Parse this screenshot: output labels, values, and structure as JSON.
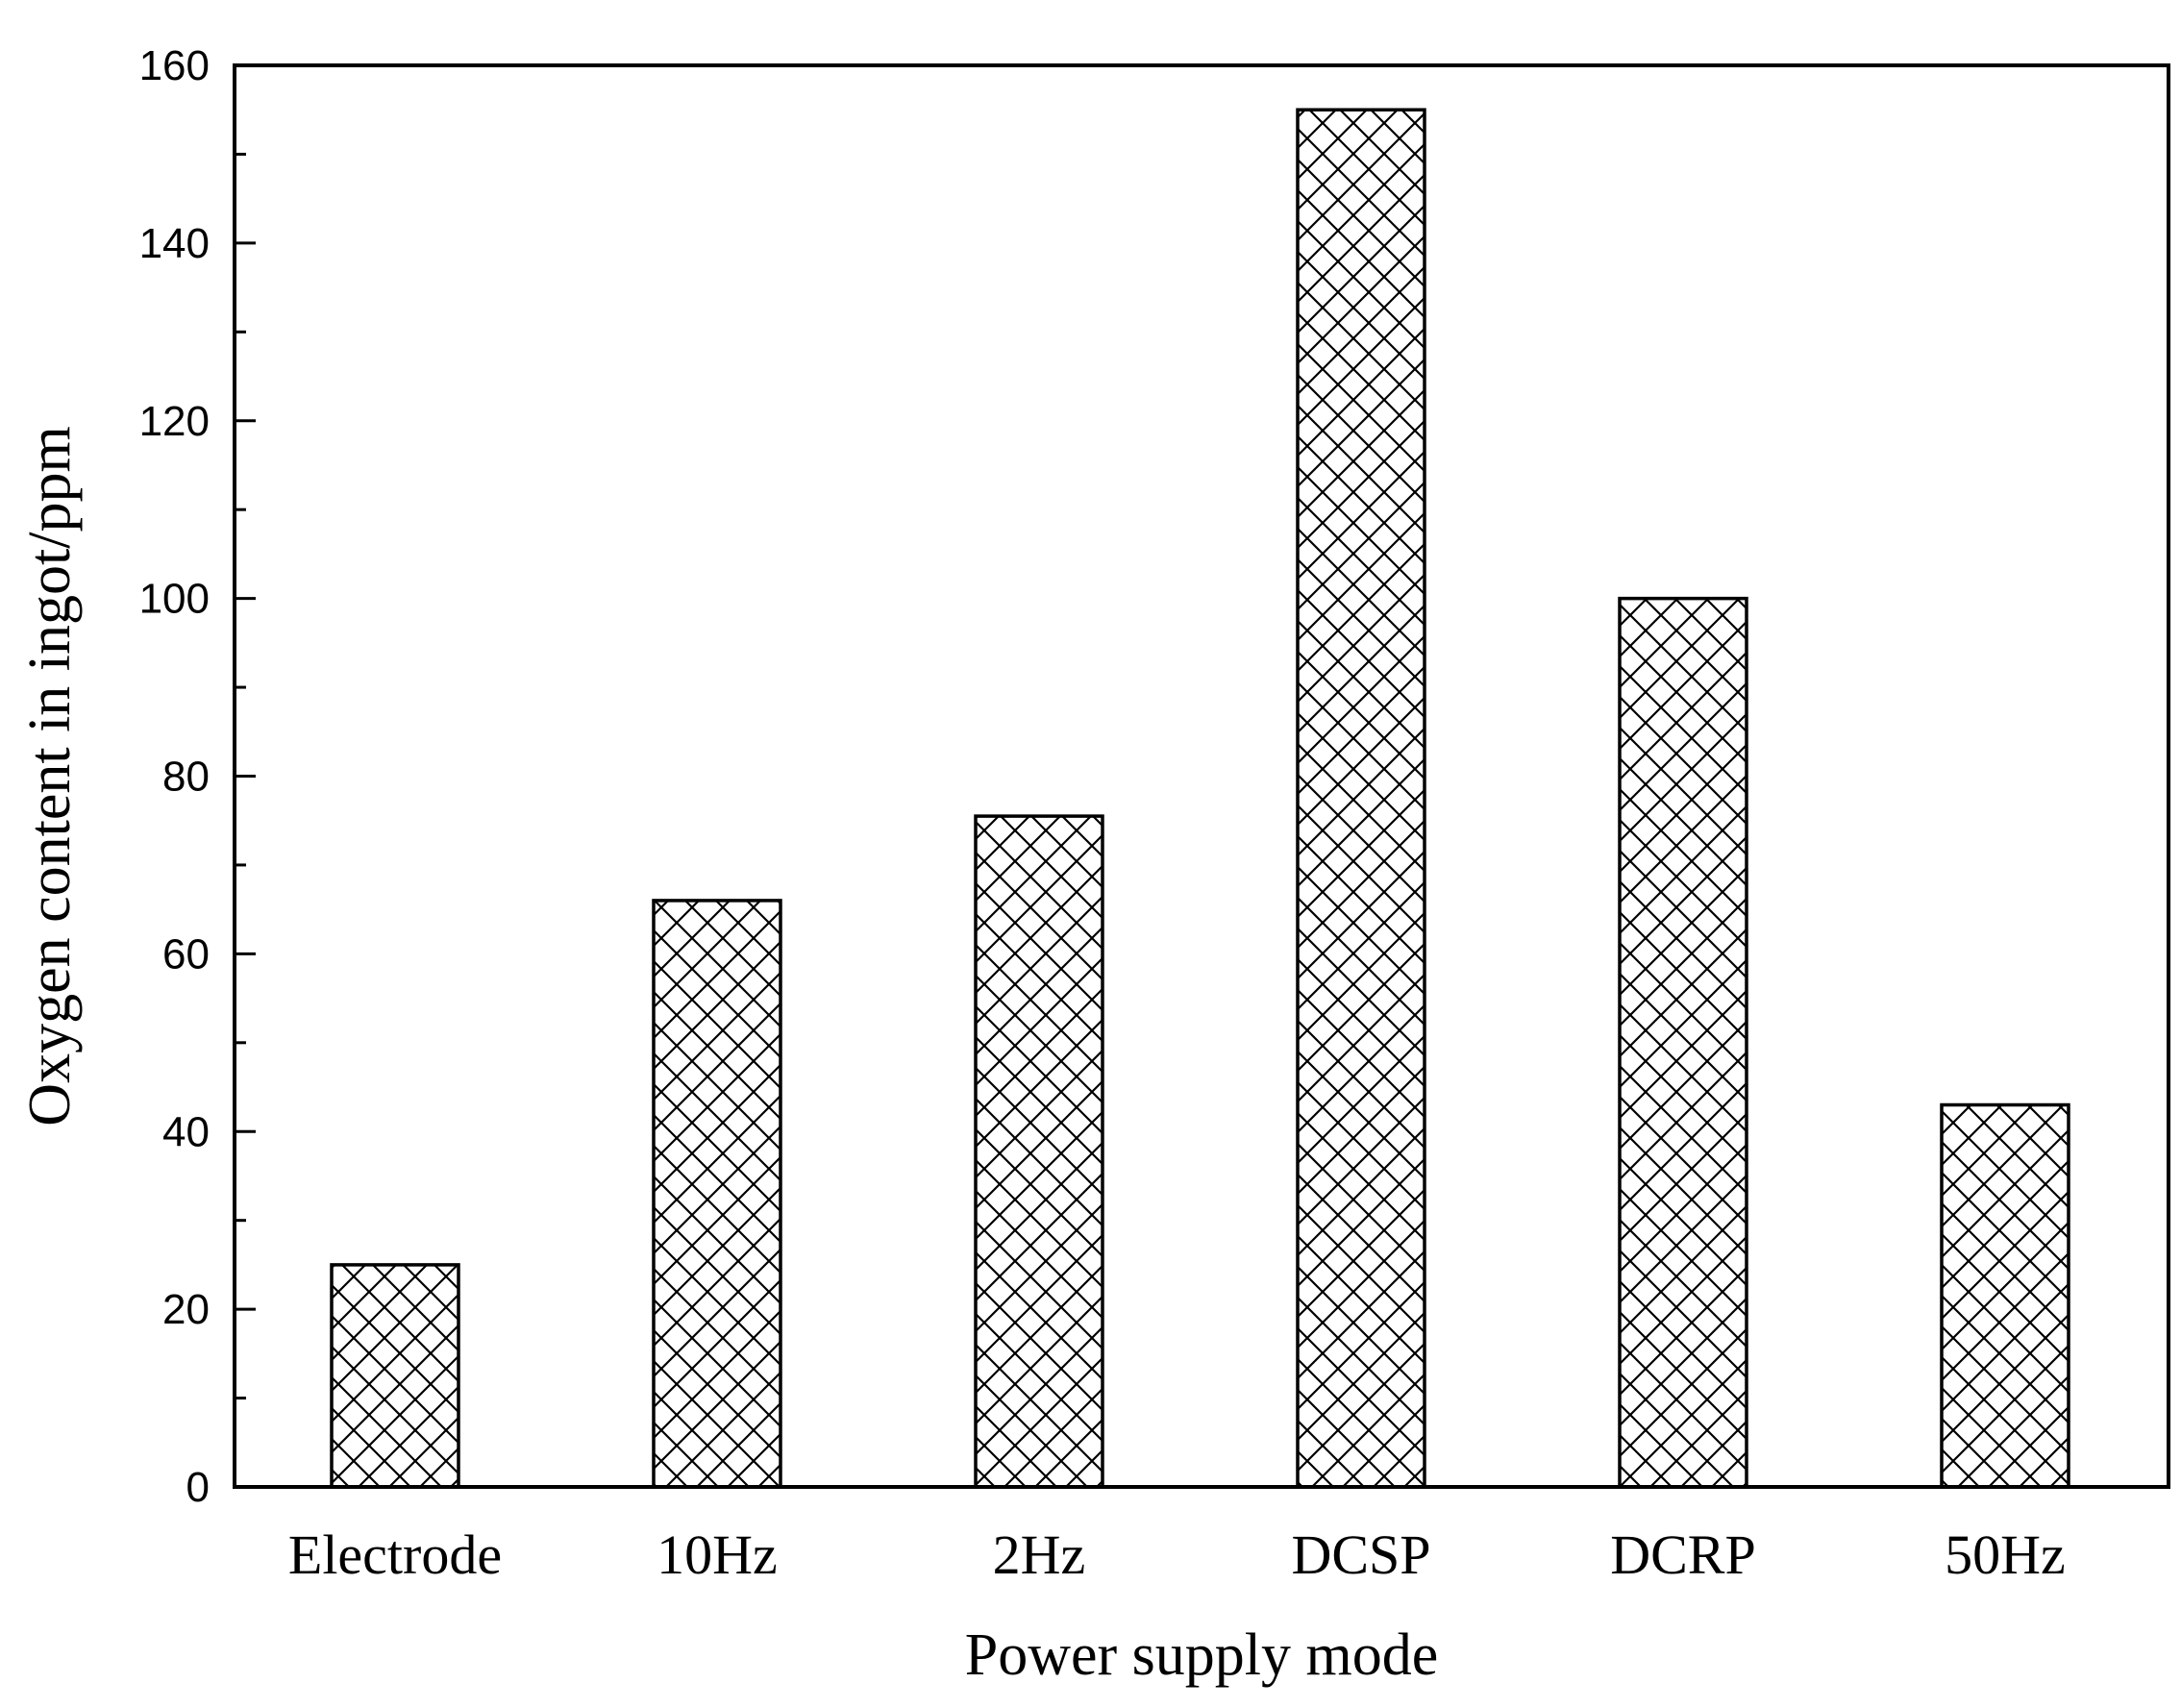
{
  "chart_data": {
    "type": "bar",
    "title": "",
    "xlabel": "Power supply mode",
    "ylabel": "Oxygen content in ingot/ppm",
    "categories": [
      "Electrode",
      "10Hz",
      "2Hz",
      "DCSP",
      "DCRP",
      "50Hz"
    ],
    "values": [
      25,
      66,
      75.5,
      155,
      100,
      43
    ],
    "ylim": [
      0,
      160
    ],
    "yticks": [
      0,
      20,
      40,
      60,
      80,
      100,
      120,
      140,
      160
    ],
    "grid": false,
    "legend": "none",
    "bar_pattern": "crosshatch",
    "colors": {
      "bar_fill": "#ffffff",
      "bar_stroke": "#000000",
      "hatch": "#000000"
    }
  }
}
